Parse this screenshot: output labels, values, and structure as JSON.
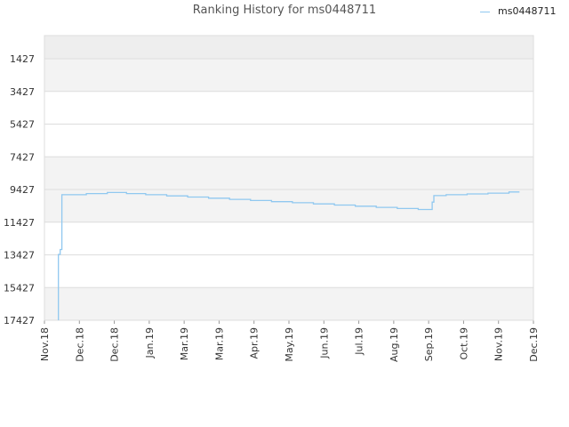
{
  "chart_data": {
    "type": "line",
    "title": "Ranking History for ms0448711",
    "xlabel": "",
    "ylabel": "",
    "y_inverted": true,
    "ylim": [
      1427,
      17427
    ],
    "y_ticks": [
      1427,
      3427,
      5427,
      7427,
      9427,
      11427,
      13427,
      15427,
      17427
    ],
    "x_ticks": [
      "Nov.18",
      "Dec.18",
      "Dec.18",
      "Jan.19",
      "Mar.19",
      "Mar.19",
      "Apr.19",
      "May.19",
      "Jun.19",
      "Jul.19",
      "Aug.19",
      "Sep.19",
      "Oct.19",
      "Nov.19",
      "Dec.19"
    ],
    "grid": true,
    "legend_position": "top-right",
    "series": [
      {
        "name": "ms0448711",
        "color": "#90c8f0",
        "x": [
          0.4,
          0.4,
          0.4,
          0.45,
          0.45,
          0.5,
          0.5,
          0.55,
          1.2,
          1.2,
          1.8,
          1.8,
          2.35,
          2.35,
          2.9,
          2.9,
          3.5,
          3.5,
          4.1,
          4.1,
          4.7,
          4.7,
          5.3,
          5.3,
          5.9,
          5.9,
          6.5,
          6.5,
          7.1,
          7.1,
          7.7,
          7.7,
          8.3,
          8.3,
          8.9,
          8.9,
          9.5,
          9.5,
          10.1,
          10.1,
          10.7,
          10.7,
          11.1,
          11.1,
          11.15,
          11.15,
          11.5,
          11.5,
          12.1,
          12.1,
          12.7,
          12.7,
          13.3,
          13.3,
          13.6
        ],
        "y": [
          17427,
          15300,
          13400,
          13400,
          13100,
          13100,
          9750,
          9750,
          9750,
          9680,
          9680,
          9610,
          9610,
          9680,
          9680,
          9750,
          9750,
          9820,
          9820,
          9890,
          9890,
          9960,
          9960,
          10030,
          10030,
          10100,
          10100,
          10170,
          10170,
          10240,
          10240,
          10310,
          10310,
          10380,
          10380,
          10450,
          10450,
          10520,
          10520,
          10590,
          10590,
          10650,
          10650,
          10200,
          10200,
          9800,
          9800,
          9750,
          9750,
          9700,
          9700,
          9650,
          9650,
          9580,
          9580
        ]
      }
    ]
  }
}
